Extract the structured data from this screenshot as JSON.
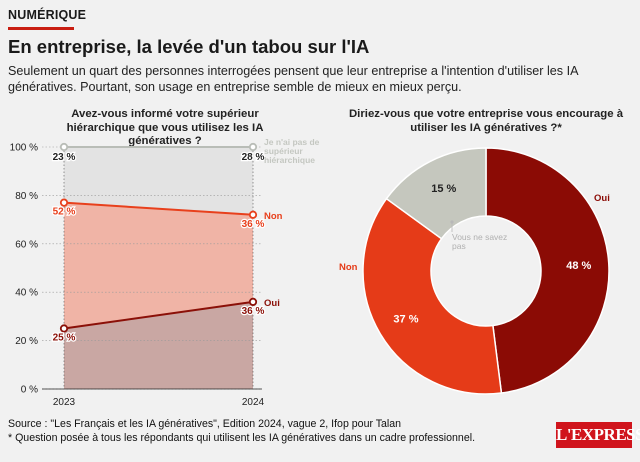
{
  "header": {
    "tag": "NUMÉRIQUE",
    "title": "En entreprise, la levée d'un tabou sur l'IA",
    "subtitle": "Seulement un quart des personnes interrogées pensent que leur entreprise a l'intention d'utiliser les IA génératives. Pourtant, son usage en entreprise semble de mieux en mieux perçu."
  },
  "chart_data": [
    {
      "type": "area",
      "title": "Avez-vous informé votre supérieur hiérarchique que vous utilisez les IA génératives ?",
      "x": [
        "2023",
        "2024"
      ],
      "ylim": [
        0,
        100
      ],
      "y_ticks": [
        "0 %",
        "20 %",
        "40 %",
        "60 %",
        "80 %",
        "100 %"
      ],
      "grid": true,
      "stacked": true,
      "series": [
        {
          "name": "Oui",
          "values": [
            25,
            36
          ],
          "labels": [
            "25 %",
            "36 %"
          ],
          "color": "#8b1008",
          "fill": "#c9a7a3"
        },
        {
          "name": "Non",
          "values": [
            52,
            36
          ],
          "labels": [
            "52 %",
            "36 %"
          ],
          "color": "#e8401c",
          "fill": "#f0b4a6"
        },
        {
          "name": "Je n'ai pas de supérieur hiérarchique",
          "values": [
            23,
            28
          ],
          "labels": [
            "23 %",
            "28 %"
          ],
          "color": "#b9bdb7",
          "fill": "#e3e3e3"
        }
      ]
    },
    {
      "type": "pie",
      "title": "Diriez-vous que votre entreprise vous encourage à utiliser les IA génératives ?*",
      "donut": true,
      "slices": [
        {
          "name": "Oui",
          "value": 48,
          "label": "48 %",
          "color": "#8b0b05"
        },
        {
          "name": "Non",
          "value": 37,
          "label": "37 %",
          "color": "#e53b18"
        },
        {
          "name": "Vous ne savez pas",
          "value": 15,
          "label": "15 %",
          "color": "#c5c7be"
        }
      ]
    }
  ],
  "footer": {
    "source": "Source : \"Les Français et les IA génératives\", Edition 2024, vague 2, Ifop pour Talan",
    "note": "* Question posée à tous les répondants qui utilisent les IA génératives dans un cadre professionnel.",
    "logo": "L'EXPRESS"
  }
}
